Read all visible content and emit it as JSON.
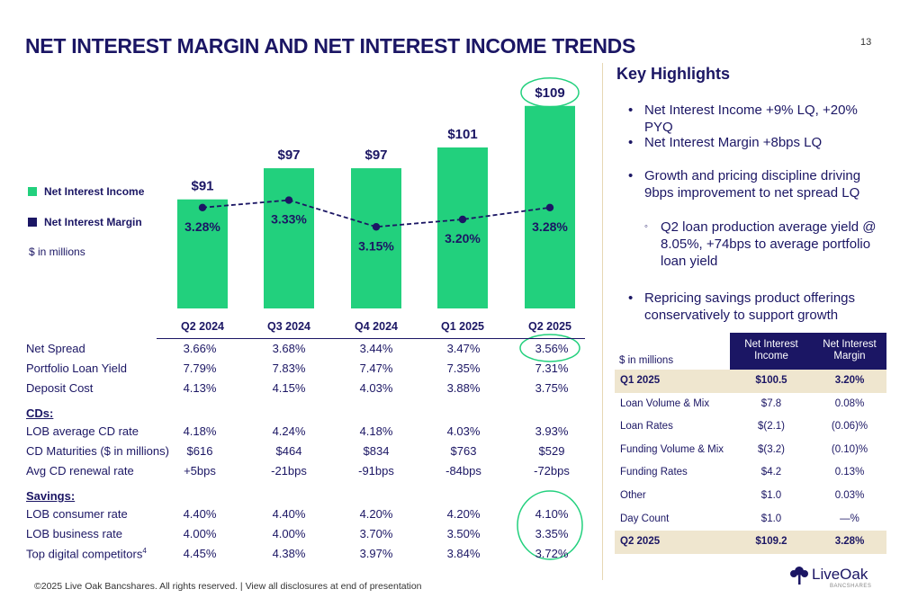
{
  "title": "NET INTEREST MARGIN AND NET INTEREST INCOME TRENDS",
  "page_number": "13",
  "legend": {
    "items": [
      {
        "label": "Net Interest Income",
        "color": "#22d07d"
      },
      {
        "label": "Net Interest Margin",
        "color": "#1b1664"
      }
    ],
    "units_note": "$ in millions"
  },
  "chart_data": {
    "type": "bar",
    "categories": [
      "Q2 2024",
      "Q3 2024",
      "Q4 2024",
      "Q1 2025",
      "Q2 2025"
    ],
    "series": [
      {
        "name": "Net Interest Income",
        "type": "bar",
        "values": [
          91,
          97,
          97,
          101,
          109
        ],
        "labels": [
          "$91",
          "$97",
          "$97",
          "$101",
          "$109"
        ],
        "color": "#22d07d"
      },
      {
        "name": "Net Interest Margin",
        "type": "line",
        "values": [
          3.28,
          3.33,
          3.15,
          3.2,
          3.28
        ],
        "labels": [
          "3.28%",
          "3.33%",
          "3.15%",
          "3.20%",
          "3.28%"
        ],
        "color": "#1b1664"
      }
    ],
    "bar_ylim": [
      70,
      110
    ],
    "line_ylim": [
      2.6,
      4.0
    ],
    "highlight_color": "#22d07d"
  },
  "metrics": {
    "groups": [
      {
        "heading": "",
        "rows": [
          {
            "label": "Net Spread",
            "values": [
              "3.66%",
              "3.68%",
              "3.44%",
              "3.47%",
              "3.56%"
            ]
          },
          {
            "label": "Portfolio Loan Yield",
            "values": [
              "7.79%",
              "7.83%",
              "7.47%",
              "7.35%",
              "7.31%"
            ]
          },
          {
            "label": "Deposit Cost",
            "values": [
              "4.13%",
              "4.15%",
              "4.03%",
              "3.88%",
              "3.75%"
            ]
          }
        ]
      },
      {
        "heading": "CDs:",
        "rows": [
          {
            "label": "LOB average CD rate",
            "values": [
              "4.18%",
              "4.24%",
              "4.18%",
              "4.03%",
              "3.93%"
            ]
          },
          {
            "label": "CD Maturities ($ in millions)",
            "values": [
              "$616",
              "$464",
              "$834",
              "$763",
              "$529"
            ]
          },
          {
            "label": "Avg CD renewal rate",
            "values": [
              "+5bps",
              "-21bps",
              "-91bps",
              "-84bps",
              "-72bps"
            ]
          }
        ]
      },
      {
        "heading": "Savings:",
        "rows": [
          {
            "label": "LOB consumer rate",
            "values": [
              "4.40%",
              "4.40%",
              "4.20%",
              "4.20%",
              "4.10%"
            ]
          },
          {
            "label": "LOB business rate",
            "values": [
              "4.00%",
              "4.00%",
              "3.70%",
              "3.50%",
              "3.35%"
            ]
          },
          {
            "label": "Top digital competitors",
            "sup": "4",
            "values": [
              "4.45%",
              "4.38%",
              "3.97%",
              "3.84%",
              "3.72%"
            ]
          }
        ]
      }
    ]
  },
  "highlights": {
    "title": "Key Highlights",
    "bullets": [
      "Net Interest Income +9% LQ, +20% PYQ",
      "Net Interest Margin +8bps LQ",
      "Growth and pricing discipline driving 9bps improvement to net spread LQ",
      "Repricing savings product offerings conservatively to support growth"
    ],
    "sub_bullet": "Q2 loan production average yield @ 8.05%, +74bps to average portfolio loan yield",
    "bullet_marker": "•",
    "sub_marker": "◦"
  },
  "attribution": {
    "units": "$ in millions",
    "headers": [
      "Net Interest Income",
      "Net Interest Margin"
    ],
    "rows": [
      {
        "label": "Q1 2025",
        "nii": "$100.5",
        "nim": "3.20%",
        "highlight": true
      },
      {
        "label": "Loan Volume & Mix",
        "nii": "$7.8",
        "nim": "0.08%"
      },
      {
        "label": "Loan Rates",
        "nii": "$(2.1)",
        "nim": "(0.06)%"
      },
      {
        "label": "Funding Volume & Mix",
        "nii": "$(3.2)",
        "nim": "(0.10)%"
      },
      {
        "label": "Funding Rates",
        "nii": "$4.2",
        "nim": "0.13%"
      },
      {
        "label": "Other",
        "nii": "$1.0",
        "nim": "0.03%"
      },
      {
        "label": "Day Count",
        "nii": "$1.0",
        "nim": "—%"
      },
      {
        "label": "Q2 2025",
        "nii": "$109.2",
        "nim": "3.28%",
        "highlight": true
      }
    ]
  },
  "footer": "©2025 Live Oak Bancshares. All rights reserved.  |  View all disclosures at end of presentation",
  "logo": {
    "name": "LiveOak",
    "sub": "BANCSHARES",
    "icon": "oak-tree-icon"
  }
}
